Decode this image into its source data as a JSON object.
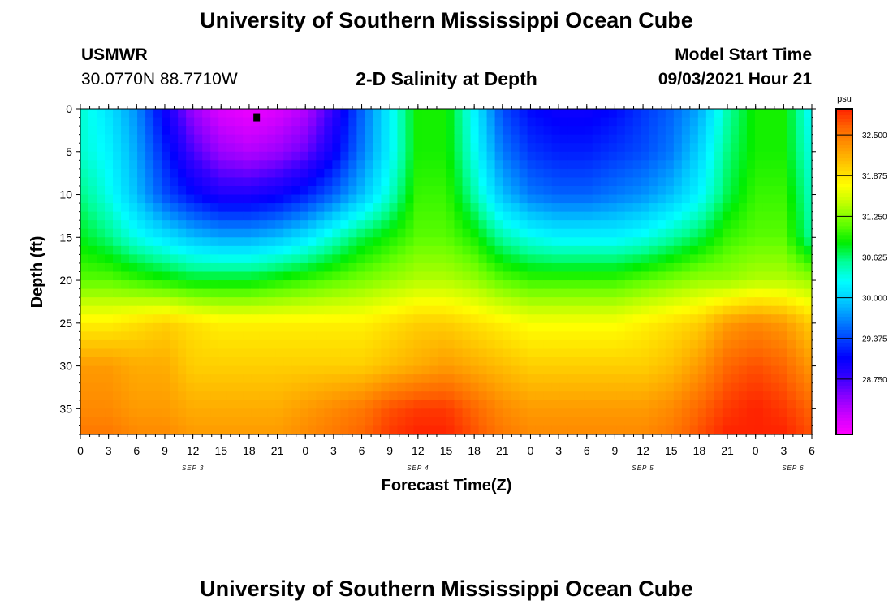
{
  "page": {
    "title_top": "University of Southern Mississippi Ocean Cube",
    "title_bottom": "University of Southern Mississippi Ocean Cube",
    "station_name": "USMWR",
    "station_coords": "30.0770N  88.7710W",
    "plot_title": "2-D Salinity at Depth",
    "model_start_label": "Model Start Time",
    "model_start_value": "09/03/2021 Hour 21"
  },
  "colors": {
    "colormap": [
      "#ff00ff",
      "#cc00ff",
      "#8800ff",
      "#3300ff",
      "#0000ff",
      "#0044ff",
      "#0088ff",
      "#00ccff",
      "#00ffff",
      "#00ff99",
      "#00ee00",
      "#66ff00",
      "#bbff00",
      "#ffff00",
      "#ffcc00",
      "#ff9900",
      "#ff6600",
      "#ff2200"
    ],
    "marker": "#000000"
  },
  "chart_data": {
    "type": "heatmap",
    "variable": "salinity",
    "units": "psu",
    "xlabel": "Forecast Time(Z)",
    "ylabel": "Depth (ft)",
    "x_range_hours": [
      0,
      78
    ],
    "y_range": [
      0,
      38
    ],
    "y_ticks": [
      0,
      5,
      10,
      15,
      20,
      25,
      30,
      35
    ],
    "x_tick_labels": [
      "0",
      "3",
      "6",
      "9",
      "12",
      "15",
      "18",
      "21",
      "0",
      "3",
      "6",
      "9",
      "12",
      "15",
      "18",
      "21",
      "0",
      "3",
      "6",
      "9",
      "12",
      "15",
      "18",
      "21",
      "0",
      "3",
      "6"
    ],
    "date_labels": [
      {
        "label": "SEP 3",
        "hour": 12
      },
      {
        "label": "SEP 4",
        "hour": 36
      },
      {
        "label": "SEP 5",
        "hour": 60
      },
      {
        "label": "SEP 6",
        "hour": 76
      }
    ],
    "colorbar": {
      "unit_label": "psu",
      "range": [
        27.9,
        32.9
      ],
      "ticks": [
        "32.500",
        "31.875",
        "31.250",
        "30.625",
        "30.000",
        "29.375",
        "28.750"
      ],
      "tick_values": [
        32.5,
        31.875,
        31.25,
        30.625,
        30.0,
        29.375,
        28.75
      ]
    },
    "marker": {
      "hour": 18.8,
      "depth": 1
    },
    "depths": [
      0,
      5,
      10,
      15,
      20,
      25,
      30,
      35,
      38
    ],
    "hours": [
      0,
      3,
      6,
      9,
      12,
      15,
      18,
      21,
      24,
      27,
      30,
      33,
      36,
      39,
      42,
      45,
      48,
      51,
      54,
      57,
      60,
      63,
      66,
      69,
      72,
      75,
      78
    ],
    "values": [
      [
        30.4,
        30.1,
        29.7,
        29.0,
        28.4,
        28.1,
        28.0,
        28.1,
        28.3,
        28.8,
        29.5,
        30.2,
        30.9,
        30.9,
        30.2,
        29.4,
        29.1,
        29.0,
        29.0,
        29.1,
        29.3,
        29.5,
        29.8,
        30.5,
        30.9,
        30.9,
        30.2
      ],
      [
        30.4,
        30.2,
        29.8,
        29.2,
        28.7,
        28.4,
        28.3,
        28.4,
        28.6,
        29.0,
        29.6,
        30.2,
        30.9,
        30.9,
        30.3,
        29.6,
        29.3,
        29.2,
        29.2,
        29.3,
        29.4,
        29.6,
        30.0,
        30.6,
        30.9,
        30.9,
        30.3
      ],
      [
        30.6,
        30.3,
        29.9,
        29.4,
        29.1,
        28.9,
        28.9,
        29.0,
        29.2,
        29.5,
        29.9,
        30.4,
        31.0,
        31.0,
        30.5,
        29.9,
        29.6,
        29.5,
        29.5,
        29.6,
        29.7,
        29.9,
        30.2,
        30.7,
        31.0,
        31.0,
        30.4
      ],
      [
        30.8,
        30.6,
        30.3,
        30.1,
        29.9,
        29.8,
        29.8,
        29.9,
        30.1,
        30.4,
        30.7,
        30.9,
        31.1,
        31.1,
        30.9,
        30.5,
        30.3,
        30.2,
        30.2,
        30.2,
        30.3,
        30.5,
        30.7,
        31.0,
        31.1,
        31.1,
        30.5
      ],
      [
        31.1,
        31.1,
        31.0,
        30.9,
        30.8,
        30.8,
        30.8,
        30.9,
        31.0,
        31.1,
        31.2,
        31.3,
        31.4,
        31.4,
        31.3,
        31.1,
        31.0,
        31.0,
        31.0,
        31.0,
        31.1,
        31.2,
        31.3,
        31.3,
        31.4,
        31.4,
        31.3
      ],
      [
        31.8,
        31.8,
        31.9,
        32.0,
        31.9,
        31.8,
        31.8,
        31.8,
        31.8,
        31.8,
        31.8,
        31.9,
        32.0,
        32.0,
        31.9,
        31.8,
        31.7,
        31.7,
        31.7,
        31.7,
        31.8,
        31.9,
        32.0,
        32.3,
        32.4,
        32.3,
        32.0
      ],
      [
        32.3,
        32.3,
        32.2,
        32.2,
        32.0,
        32.0,
        32.0,
        32.0,
        32.0,
        32.0,
        32.0,
        32.1,
        32.2,
        32.3,
        32.2,
        32.1,
        32.0,
        32.0,
        32.0,
        32.0,
        32.0,
        32.1,
        32.3,
        32.6,
        32.7,
        32.6,
        32.3
      ],
      [
        32.4,
        32.4,
        32.3,
        32.3,
        32.2,
        32.2,
        32.2,
        32.2,
        32.3,
        32.4,
        32.5,
        32.7,
        32.8,
        32.8,
        32.6,
        32.4,
        32.3,
        32.3,
        32.3,
        32.3,
        32.3,
        32.4,
        32.6,
        32.8,
        32.9,
        32.8,
        32.6
      ],
      [
        32.5,
        32.5,
        32.4,
        32.4,
        32.3,
        32.3,
        32.3,
        32.3,
        32.4,
        32.5,
        32.6,
        32.8,
        32.9,
        32.9,
        32.7,
        32.5,
        32.4,
        32.4,
        32.4,
        32.4,
        32.4,
        32.5,
        32.7,
        32.9,
        32.9,
        32.9,
        32.7
      ]
    ]
  }
}
